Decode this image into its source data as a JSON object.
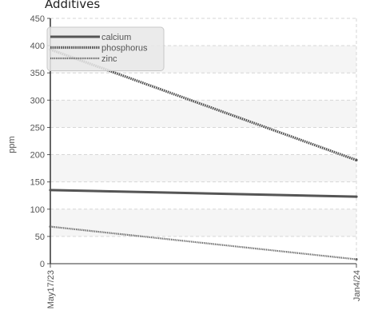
{
  "chart_data": {
    "type": "line",
    "title": "Additives",
    "xlabel": "",
    "ylabel": "ppm",
    "x": [
      "May17/23",
      "Jan4/24"
    ],
    "ylim": [
      0,
      450
    ],
    "yticks": [
      0,
      50,
      100,
      150,
      200,
      250,
      300,
      350,
      400,
      450
    ],
    "grid": true,
    "legend_position": "top-left",
    "series": [
      {
        "name": "calcium",
        "values": [
          135,
          123
        ],
        "color": "#555555",
        "style": "solid"
      },
      {
        "name": "phosphorus",
        "values": [
          393,
          190
        ],
        "color": "#555555",
        "style": "dotted"
      },
      {
        "name": "zinc",
        "values": [
          68,
          8
        ],
        "color": "#666666",
        "style": "dotted-thin"
      }
    ]
  }
}
